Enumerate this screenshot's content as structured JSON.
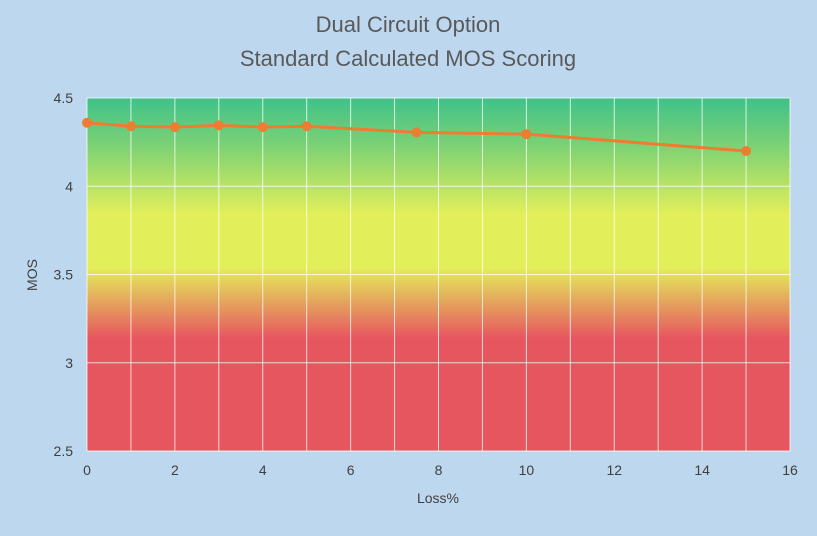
{
  "chart_data": {
    "type": "line",
    "title": "Dual Circuit Option",
    "subtitle": "Standard Calculated MOS Scoring",
    "xlabel": "Loss%",
    "ylabel": "MOS",
    "xlim": [
      0,
      16
    ],
    "ylim": [
      2.5,
      4.5
    ],
    "x_ticks": [
      0,
      2,
      4,
      6,
      8,
      10,
      12,
      14,
      16
    ],
    "y_ticks": [
      2.5,
      3,
      3.5,
      4,
      4.5
    ],
    "grid": true,
    "legend": "none",
    "background_gradient": [
      "#3fc18a",
      "#e3ef5a",
      "#e6565f"
    ],
    "series": [
      {
        "color": "#ed7d31",
        "points": [
          {
            "x": 0,
            "y": 4.36
          },
          {
            "x": 1,
            "y": 4.34
          },
          {
            "x": 2,
            "y": 4.335
          },
          {
            "x": 3,
            "y": 4.345
          },
          {
            "x": 4,
            "y": 4.335
          },
          {
            "x": 5,
            "y": 4.34
          },
          {
            "x": 7.5,
            "y": 4.305
          },
          {
            "x": 10,
            "y": 4.295
          },
          {
            "x": 15,
            "y": 4.2
          }
        ]
      }
    ]
  }
}
